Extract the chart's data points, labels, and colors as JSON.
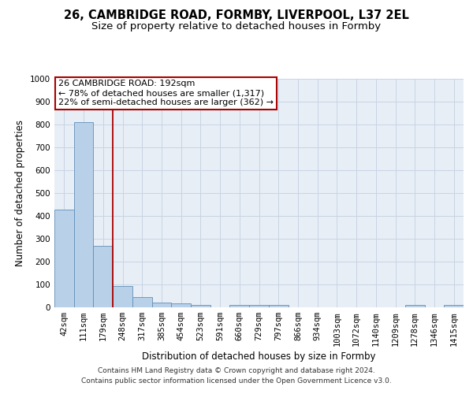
{
  "title_line1": "26, CAMBRIDGE ROAD, FORMBY, LIVERPOOL, L37 2EL",
  "title_line2": "Size of property relative to detached houses in Formby",
  "xlabel": "Distribution of detached houses by size in Formby",
  "ylabel": "Number of detached properties",
  "bar_color": "#b8d0e8",
  "bar_edge_color": "#6090b8",
  "categories": [
    "42sqm",
    "111sqm",
    "179sqm",
    "248sqm",
    "317sqm",
    "385sqm",
    "454sqm",
    "523sqm",
    "591sqm",
    "660sqm",
    "729sqm",
    "797sqm",
    "866sqm",
    "934sqm",
    "1003sqm",
    "1072sqm",
    "1140sqm",
    "1209sqm",
    "1278sqm",
    "1346sqm",
    "1415sqm"
  ],
  "values": [
    428,
    812,
    268,
    93,
    45,
    22,
    17,
    12,
    0,
    12,
    12,
    12,
    0,
    0,
    0,
    0,
    0,
    0,
    12,
    0,
    12
  ],
  "vline_x": 2.5,
  "vline_color": "#aa0000",
  "annotation_line1": "26 CAMBRIDGE ROAD: 192sqm",
  "annotation_line2": "← 78% of detached houses are smaller (1,317)",
  "annotation_line3": "22% of semi-detached houses are larger (362) →",
  "annotation_box_color": "#aa0000",
  "ylim": [
    0,
    1000
  ],
  "yticks": [
    0,
    100,
    200,
    300,
    400,
    500,
    600,
    700,
    800,
    900,
    1000
  ],
  "grid_color": "#c8d4e4",
  "background_color": "#e8eef6",
  "footer_line1": "Contains HM Land Registry data © Crown copyright and database right 2024.",
  "footer_line2": "Contains public sector information licensed under the Open Government Licence v3.0.",
  "title_fontsize": 10.5,
  "subtitle_fontsize": 9.5,
  "axis_label_fontsize": 8.5,
  "tick_fontsize": 7.5,
  "annotation_fontsize": 8,
  "footer_fontsize": 6.5
}
